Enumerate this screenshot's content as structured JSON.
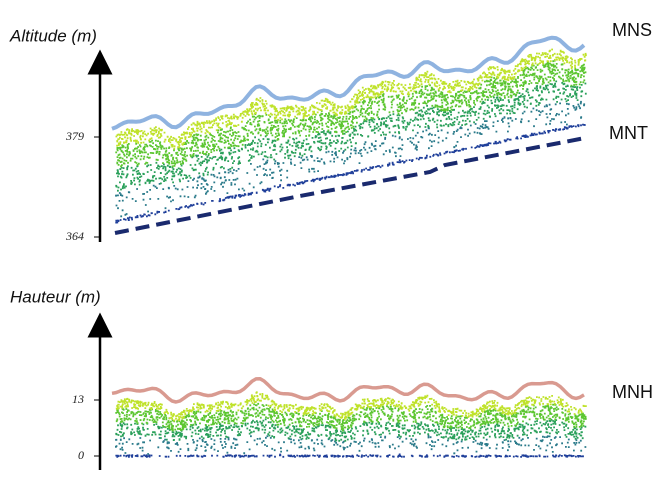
{
  "top_panel": {
    "axis_label": "Altitude  (m)",
    "ticks": [
      379,
      364
    ],
    "curves": {
      "surface": "MNS",
      "terrain": "MNT"
    }
  },
  "bottom_panel": {
    "axis_label": "Hauteur  (m)",
    "ticks": [
      13,
      0
    ],
    "curves": {
      "height": "MNH"
    }
  }
}
